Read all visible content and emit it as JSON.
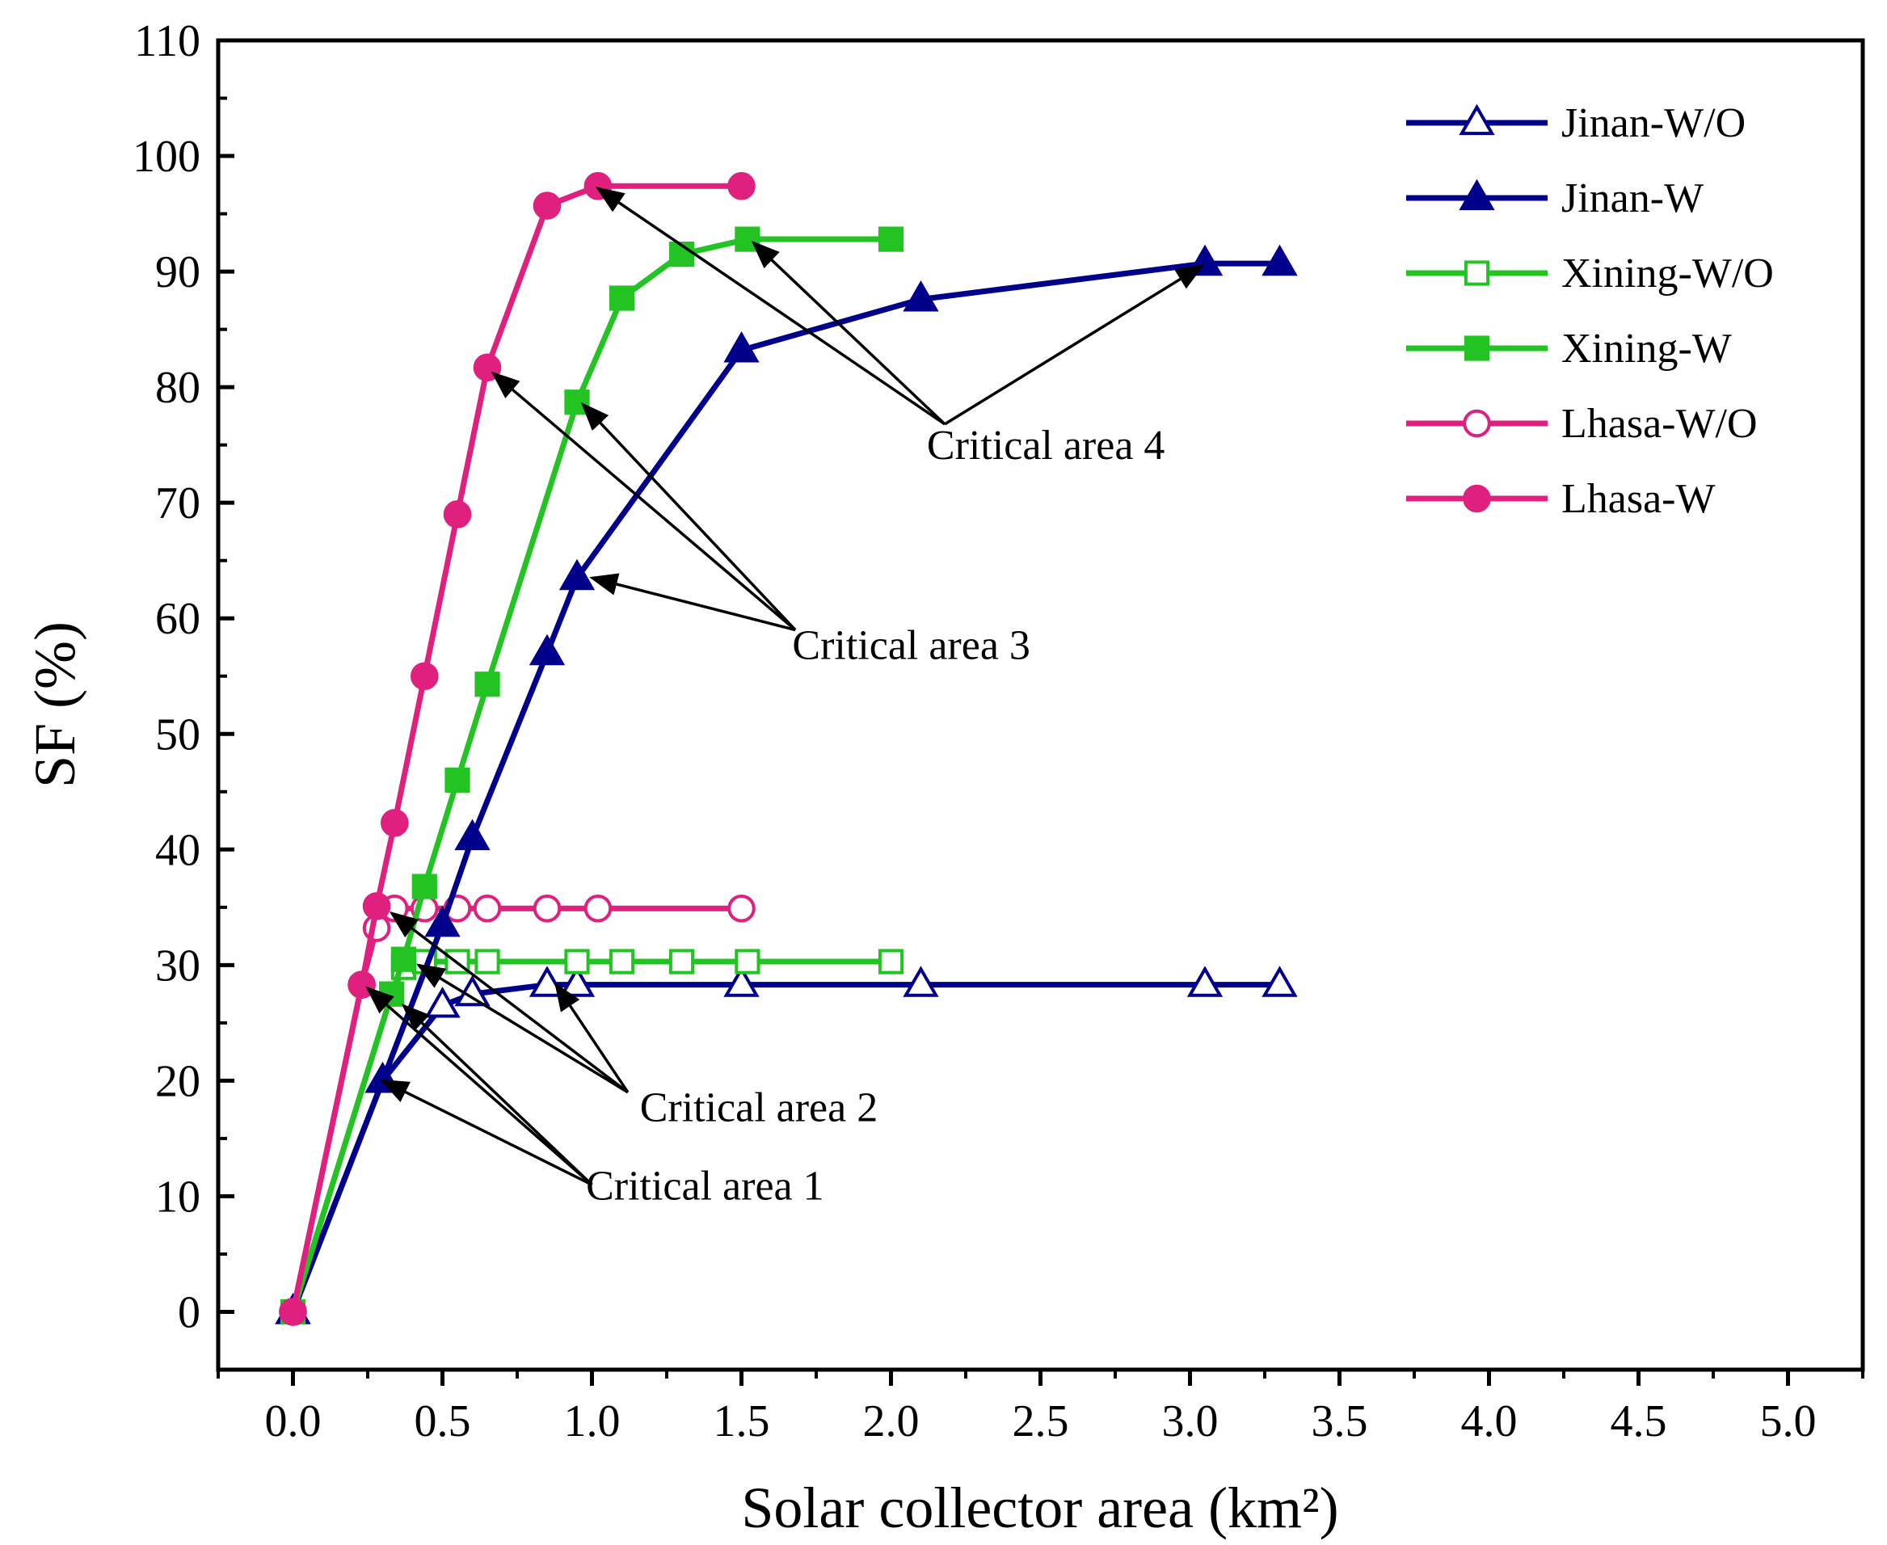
{
  "chart_data": {
    "type": "line",
    "title": "",
    "xlabel": "Solar collector area (km²)",
    "ylabel": "SF (%)",
    "xlim": [
      -0.25,
      5.25
    ],
    "ylim": [
      -5,
      110
    ],
    "x_ticks": [
      0.0,
      0.5,
      1.0,
      1.5,
      2.0,
      2.5,
      3.0,
      3.5,
      4.0,
      4.5,
      5.0
    ],
    "x_tick_labels": [
      "0.0",
      "0.5",
      "1.0",
      "1.5",
      "2.0",
      "2.5",
      "3.0",
      "3.5",
      "4.0",
      "4.5",
      "5.0"
    ],
    "y_ticks": [
      0,
      10,
      20,
      30,
      40,
      50,
      60,
      70,
      80,
      90,
      100,
      110
    ],
    "y_tick_labels": [
      "0",
      "10",
      "20",
      "30",
      "40",
      "50",
      "60",
      "70",
      "80",
      "90",
      "100",
      "110"
    ],
    "grid": false,
    "legend_position": "top-right",
    "series": [
      {
        "name": "Jinan-W/O",
        "color": "#00008B",
        "marker": "triangle",
        "filled": false,
        "x": [
          0,
          0.3,
          0.5,
          0.6,
          0.85,
          0.95,
          1.5,
          2.1,
          3.05,
          3.3
        ],
        "y": [
          0,
          20,
          26.5,
          27.5,
          28.3,
          28.3,
          28.3,
          28.3,
          28.3,
          28.3
        ]
      },
      {
        "name": "Jinan-W",
        "color": "#00008B",
        "marker": "triangle",
        "filled": true,
        "x": [
          0,
          0.3,
          0.5,
          0.6,
          0.85,
          0.95,
          1.5,
          2.1,
          3.05,
          3.3
        ],
        "y": [
          0,
          20,
          33.5,
          41,
          57,
          63.5,
          83.2,
          87.6,
          90.7,
          90.7
        ]
      },
      {
        "name": "Xining-W/O",
        "color": "#22C322",
        "marker": "square",
        "filled": false,
        "x": [
          0,
          0.33,
          0.37,
          0.44,
          0.55,
          0.65,
          0.95,
          1.1,
          1.3,
          1.52,
          2.0
        ],
        "y": [
          0,
          27.5,
          29.8,
          30.3,
          30.3,
          30.3,
          30.3,
          30.3,
          30.3,
          30.3,
          30.3
        ]
      },
      {
        "name": "Xining-W",
        "color": "#22C322",
        "marker": "square",
        "filled": true,
        "x": [
          0,
          0.33,
          0.37,
          0.44,
          0.55,
          0.65,
          0.95,
          1.1,
          1.3,
          1.52,
          2.0
        ],
        "y": [
          0,
          27.5,
          30.5,
          36.8,
          46,
          54.3,
          78.7,
          87.7,
          91.5,
          92.8,
          92.8
        ]
      },
      {
        "name": "Lhasa-W/O",
        "color": "#E0207E",
        "marker": "circle",
        "filled": false,
        "x": [
          0,
          0.23,
          0.28,
          0.34,
          0.44,
          0.55,
          0.65,
          0.85,
          1.02,
          1.5
        ],
        "y": [
          0,
          28.3,
          33.2,
          34.9,
          34.9,
          34.9,
          34.9,
          34.9,
          34.9,
          34.9
        ]
      },
      {
        "name": "Lhasa-W",
        "color": "#E0207E",
        "marker": "circle",
        "filled": true,
        "x": [
          0,
          0.23,
          0.28,
          0.34,
          0.44,
          0.55,
          0.65,
          0.85,
          1.02,
          1.5
        ],
        "y": [
          0,
          28.3,
          35.1,
          42.3,
          55,
          69,
          81.7,
          95.7,
          97.4,
          97.4
        ]
      }
    ],
    "annotations": [
      {
        "text": "Critical area 1",
        "anchor": [
          1.0,
          11.0
        ],
        "label_at": [
          0.98,
          9.7
        ],
        "targets": [
          [
            0.3,
            20
          ],
          [
            0.37,
            26.5
          ],
          [
            0.25,
            28
          ]
        ]
      },
      {
        "text": "Critical area 2",
        "anchor": [
          1.12,
          19.0
        ],
        "label_at": [
          1.16,
          16.5
        ],
        "targets": [
          [
            0.33,
            34.5
          ],
          [
            0.42,
            30
          ],
          [
            0.88,
            28.3
          ]
        ]
      },
      {
        "text": "Critical area 3",
        "anchor": [
          1.68,
          59.0
        ],
        "label_at": [
          1.67,
          56.5
        ],
        "targets": [
          [
            0.67,
            81.2
          ],
          [
            0.97,
            78.5
          ],
          [
            1.0,
            63.5
          ]
        ]
      },
      {
        "text": "Critical area 4",
        "anchor": [
          2.18,
          76.8
        ],
        "label_at": [
          2.12,
          73.8
        ],
        "targets": [
          [
            1.02,
            97.2
          ],
          [
            1.54,
            92.5
          ],
          [
            3.04,
            90.5
          ]
        ]
      }
    ]
  }
}
